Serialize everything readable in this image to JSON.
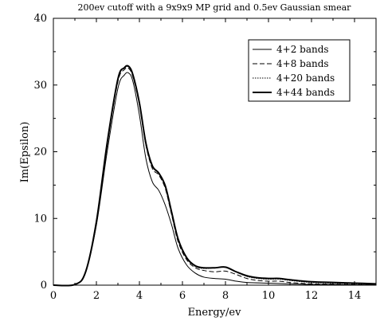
{
  "chart_data": {
    "type": "line",
    "title": "200ev cutoff with a 9x9x9 MP grid and 0.5ev Gaussian smear",
    "xlabel": "Energy/ev",
    "ylabel": "Im(Epsilon)",
    "xlim": [
      0,
      15
    ],
    "ylim": [
      0,
      40
    ],
    "xticks": [
      "0",
      "2",
      "4",
      "6",
      "8",
      "10",
      "12",
      "14"
    ],
    "yticks": [
      "0",
      "10",
      "20",
      "30",
      "40"
    ],
    "grid": false,
    "legend_position": "top-right",
    "series": [
      {
        "name": "4+2 bands",
        "style": "solid-thin",
        "color": "#000000",
        "x": [
          0,
          1,
          1.5,
          2,
          2.5,
          3,
          3.3,
          3.5,
          3.7,
          4,
          4.3,
          4.6,
          4.9,
          5.2,
          5.5,
          5.8,
          6.2,
          6.6,
          7,
          7.5,
          8,
          8.5,
          9,
          10,
          11,
          12,
          13,
          14,
          15
        ],
        "y": [
          0,
          0.1,
          2,
          9,
          20,
          29.5,
          31.5,
          31.8,
          30.5,
          25.5,
          19,
          15.5,
          14.2,
          12,
          9,
          5.5,
          3,
          1.8,
          1.2,
          1.0,
          0.9,
          0.6,
          0.4,
          0.3,
          0.2,
          0.1,
          0.1,
          0.05,
          0.05
        ]
      },
      {
        "name": "4+8 bands",
        "style": "dashed",
        "color": "#000000",
        "x": [
          0,
          1,
          1.5,
          2,
          2.5,
          3,
          3.3,
          3.5,
          3.7,
          4,
          4.3,
          4.6,
          4.9,
          5.2,
          5.5,
          5.8,
          6.2,
          6.6,
          7,
          7.5,
          8,
          8.5,
          9,
          9.5,
          10,
          10.5,
          11,
          12,
          13,
          14,
          15
        ],
        "y": [
          0,
          0.1,
          2,
          9.3,
          21,
          30.5,
          32.3,
          32.5,
          31.2,
          27,
          21,
          17.5,
          16.5,
          14.5,
          10.5,
          6.5,
          3.8,
          2.6,
          2.2,
          2.0,
          2.1,
          1.6,
          1.0,
          0.7,
          0.6,
          0.6,
          0.4,
          0.2,
          0.15,
          0.1,
          0.05
        ]
      },
      {
        "name": "4+20 bands",
        "style": "dotted",
        "color": "#000000",
        "x": [
          0,
          1,
          1.5,
          2,
          2.5,
          3,
          3.3,
          3.5,
          3.7,
          4,
          4.3,
          4.6,
          4.9,
          5.2,
          5.5,
          5.8,
          6.2,
          6.6,
          7,
          7.5,
          8,
          8.5,
          9,
          9.5,
          10,
          10.5,
          11,
          12,
          13,
          14,
          15
        ],
        "y": [
          0,
          0.1,
          2,
          9.5,
          21.2,
          30.8,
          32.5,
          32.7,
          31.4,
          27.2,
          21.2,
          17.8,
          16.7,
          14.8,
          10.8,
          6.8,
          4,
          2.8,
          2.5,
          2.6,
          2.7,
          2.0,
          1.3,
          1.0,
          0.9,
          0.9,
          0.7,
          0.4,
          0.3,
          0.2,
          0.1
        ]
      },
      {
        "name": "4+44 bands",
        "style": "solid-thick",
        "color": "#000000",
        "x": [
          0,
          1,
          1.5,
          2,
          2.5,
          3,
          3.3,
          3.5,
          3.7,
          4,
          4.3,
          4.6,
          4.9,
          5.2,
          5.5,
          5.8,
          6.2,
          6.6,
          7,
          7.5,
          8,
          8.5,
          9,
          9.5,
          10,
          10.5,
          11,
          12,
          13,
          14,
          15
        ],
        "y": [
          0,
          0.1,
          2,
          9.5,
          21.3,
          30.9,
          32.6,
          32.8,
          31.5,
          27.3,
          21.3,
          17.9,
          16.8,
          14.9,
          10.9,
          6.9,
          4.1,
          2.9,
          2.6,
          2.6,
          2.7,
          2.0,
          1.4,
          1.1,
          1.0,
          1.0,
          0.8,
          0.5,
          0.4,
          0.3,
          0.2
        ]
      }
    ]
  }
}
